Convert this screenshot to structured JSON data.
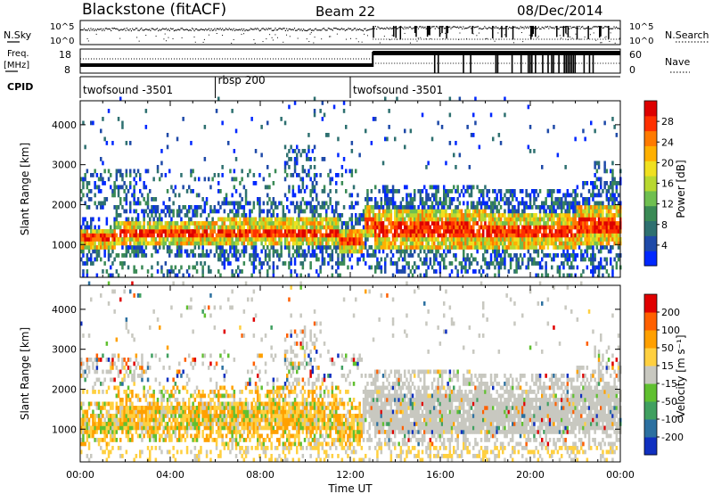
{
  "header": {
    "station": "Blackstone (fitACF)",
    "beam": "Beam 22",
    "date": "08/Dec/2014"
  },
  "top_panels": {
    "nsky_label": "N.Sky",
    "nsearch_label": "N.Search",
    "freq_label_1": "Freq.",
    "freq_label_2": "[MHz]",
    "nave_label": "Nave",
    "cpid_label": "CPID",
    "nsky_ticks": [
      "10^5",
      "10^0"
    ],
    "nsearch_ticks": [
      "10^5",
      "10^0"
    ],
    "freq_ticks": [
      "18",
      "8"
    ],
    "nave_ticks": [
      "60",
      "0"
    ],
    "cpid_segments": [
      {
        "label": "twofsound -3501",
        "start_hour": 0.0
      },
      {
        "label": "rbsp 200",
        "start_hour": 6.0
      },
      {
        "label": "twofsound -3501",
        "start_hour": 12.0
      }
    ]
  },
  "chart_data": [
    {
      "type": "heatmap",
      "panel": "power",
      "ylabel": "Slant Range [km]",
      "xlim": [
        0,
        24
      ],
      "ylim": [
        180,
        4600
      ],
      "yticks": [
        1000,
        2000,
        3000,
        4000
      ],
      "colorbar_label": "Power [dB]",
      "colorbar_ticks": [
        "28",
        "24",
        "20",
        "16",
        "12",
        "8",
        "4"
      ],
      "colors": [
        "#0028ff",
        "#1f4aa8",
        "#2e7070",
        "#3a8a55",
        "#6fbf50",
        "#b8d830",
        "#f0e020",
        "#ffb000",
        "#ff7a00",
        "#ff3000",
        "#dd0000"
      ]
    },
    {
      "type": "heatmap",
      "panel": "velocity",
      "ylabel": "Slant Range [km]",
      "xlabel": "Time UT",
      "xlim": [
        0,
        24
      ],
      "ylim": [
        180,
        4600
      ],
      "yticks": [
        1000,
        2000,
        3000,
        4000
      ],
      "xticks": [
        "00:00",
        "04:00",
        "08:00",
        "12:00",
        "16:00",
        "20:00",
        "00:00"
      ],
      "colorbar_label": "Velocity [m s⁻¹]",
      "colorbar_ticks": [
        "200",
        "100",
        "50",
        "15",
        "-15",
        "-50",
        "-100",
        "-200"
      ],
      "colors": [
        "#1030c0",
        "#2c70a0",
        "#40a060",
        "#60c030",
        "#c8c8c0",
        "#ffd040",
        "#ffa000",
        "#ff6000",
        "#e00000"
      ]
    }
  ]
}
